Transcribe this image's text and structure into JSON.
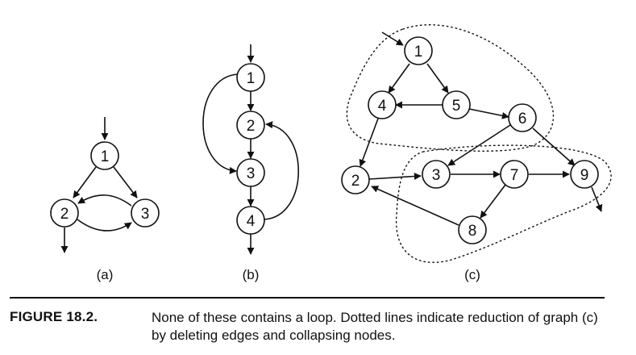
{
  "figure": {
    "panels": [
      {
        "id": "a",
        "label": "(a)",
        "nodes": [
          "1",
          "2",
          "3"
        ],
        "edges": [
          [
            "1",
            "2"
          ],
          [
            "1",
            "3"
          ],
          [
            "2",
            "3"
          ],
          [
            "3",
            "2"
          ]
        ]
      },
      {
        "id": "b",
        "label": "(b)",
        "nodes": [
          "1",
          "2",
          "3",
          "4"
        ],
        "edges": [
          [
            "1",
            "2"
          ],
          [
            "2",
            "3"
          ],
          [
            "3",
            "4"
          ],
          [
            "1",
            "3"
          ],
          [
            "4",
            "2"
          ]
        ]
      },
      {
        "id": "c",
        "label": "(c)",
        "nodes": [
          "1",
          "4",
          "5",
          "6",
          "2",
          "3",
          "7",
          "9",
          "8"
        ],
        "edges": [
          [
            "1",
            "4"
          ],
          [
            "1",
            "5"
          ],
          [
            "5",
            "4"
          ],
          [
            "5",
            "6"
          ],
          [
            "4",
            "2"
          ],
          [
            "6",
            "3"
          ],
          [
            "6",
            "9"
          ],
          [
            "2",
            "3"
          ],
          [
            "3",
            "7"
          ],
          [
            "7",
            "9"
          ],
          [
            "7",
            "8"
          ],
          [
            "8",
            "2"
          ]
        ]
      }
    ]
  },
  "caption": {
    "label": "FIGURE 18.2.",
    "text": "None of these contains a loop. Dotted lines indicate reduction of graph (c) by deleting edges and collapsing nodes."
  }
}
